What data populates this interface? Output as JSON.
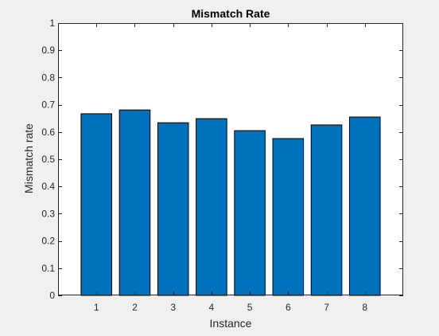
{
  "chart_data": {
    "type": "bar",
    "title": "Mismatch Rate",
    "xlabel": "Instance",
    "ylabel": "Mismatch rate",
    "categories": [
      "1",
      "2",
      "3",
      "4",
      "5",
      "6",
      "7",
      "8"
    ],
    "values": [
      0.667,
      0.681,
      0.634,
      0.649,
      0.605,
      0.576,
      0.626,
      0.655
    ],
    "ylim": [
      0,
      1
    ],
    "xlim": [
      0,
      9
    ],
    "yticks": [
      "0",
      "0.1",
      "0.2",
      "0.3",
      "0.4",
      "0.5",
      "0.6",
      "0.7",
      "0.8",
      "0.9",
      "1"
    ],
    "grid": false,
    "legend": "none",
    "colors": {
      "bar_fill": "#0072bd",
      "bar_edge": "#000000",
      "axes_background": "#ffffff",
      "figure_background": "#f0f0f0",
      "axis_color": "#262626"
    }
  }
}
